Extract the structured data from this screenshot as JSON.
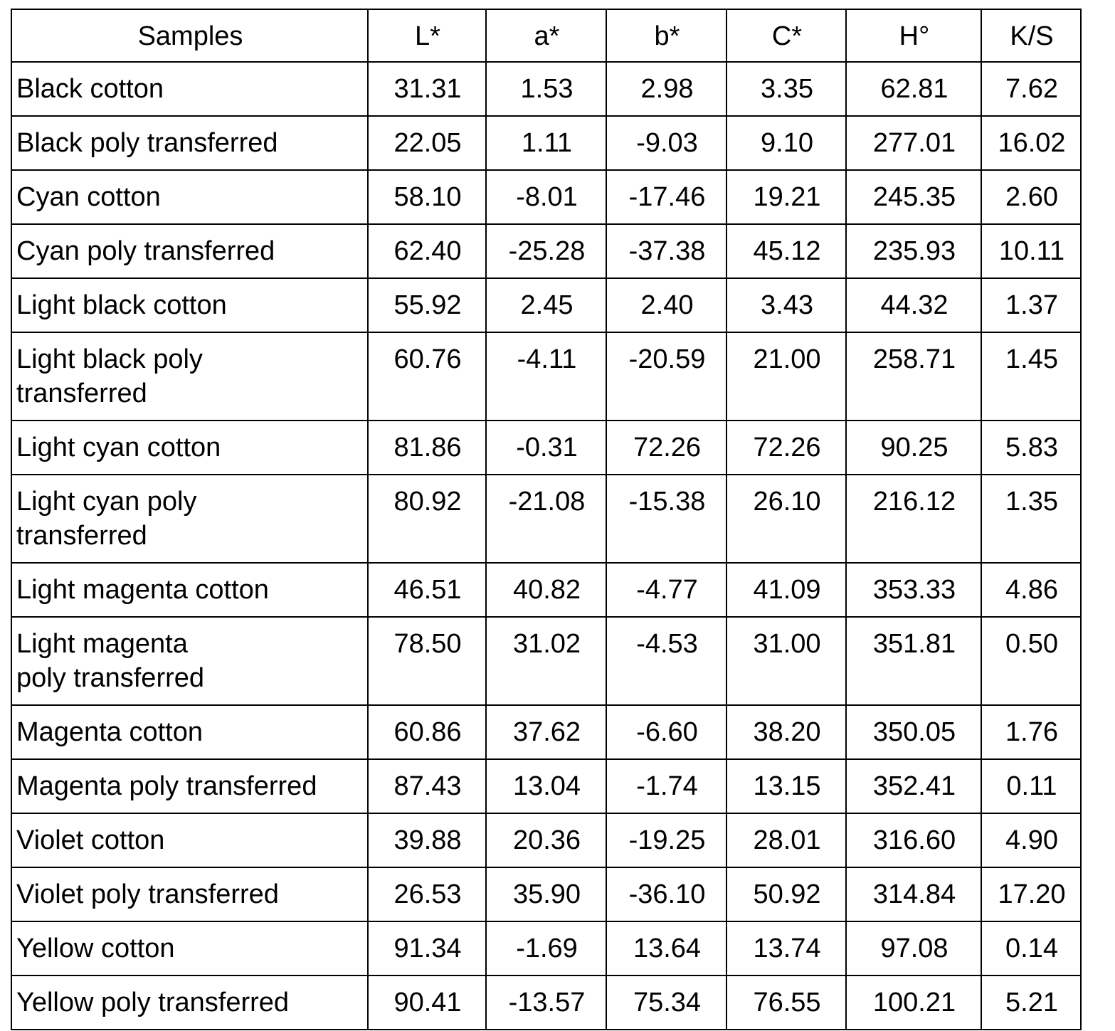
{
  "table": {
    "headers": [
      "Samples",
      "L*",
      "a*",
      "b*",
      "C*",
      "H°",
      "K/S"
    ],
    "rows": [
      [
        "Black cotton",
        "31.31",
        "1.53",
        "2.98",
        "3.35",
        "62.81",
        "7.62"
      ],
      [
        "Black poly transferred",
        "22.05",
        "1.11",
        "-9.03",
        "9.10",
        "277.01",
        "16.02"
      ],
      [
        "Cyan cotton",
        "58.10",
        "-8.01",
        "-17.46",
        "19.21",
        "245.35",
        "2.60"
      ],
      [
        "Cyan poly transferred",
        "62.40",
        "-25.28",
        "-37.38",
        "45.12",
        "235.93",
        "10.11"
      ],
      [
        "Light black cotton",
        "55.92",
        "2.45",
        "2.40",
        "3.43",
        "44.32",
        "1.37"
      ],
      [
        "Light black poly transferred",
        "60.76",
        "-4.11",
        "-20.59",
        "21.00",
        "258.71",
        "1.45"
      ],
      [
        "Light cyan cotton",
        "81.86",
        "-0.31",
        "72.26",
        "72.26",
        "90.25",
        "5.83"
      ],
      [
        "Light cyan poly transferred",
        "80.92",
        "-21.08",
        "-15.38",
        "26.10",
        "216.12",
        "1.35"
      ],
      [
        "Light magenta cotton",
        "46.51",
        "40.82",
        "-4.77",
        "41.09",
        "353.33",
        "4.86"
      ],
      [
        "Light magenta poly transferred",
        "78.50",
        "31.02",
        "-4.53",
        "31.00",
        "351.81",
        "0.50"
      ],
      [
        "Magenta cotton",
        "60.86",
        "37.62",
        "-6.60",
        "38.20",
        "350.05",
        "1.76"
      ],
      [
        "Magenta poly transferred",
        "87.43",
        "13.04",
        "-1.74",
        "13.15",
        "352.41",
        "0.11"
      ],
      [
        "Violet cotton",
        "39.88",
        "20.36",
        "-19.25",
        "28.01",
        "316.60",
        "4.90"
      ],
      [
        "Violet poly transferred",
        "26.53",
        "35.90",
        "-36.10",
        "50.92",
        "314.84",
        "17.20"
      ],
      [
        "Yellow cotton",
        "91.34",
        "-1.69",
        "13.64",
        "13.74",
        "97.08",
        "0.14"
      ],
      [
        "Yellow poly transferred",
        "90.41",
        "-13.57",
        "75.34",
        "76.55",
        "100.21",
        "5.21"
      ]
    ]
  }
}
